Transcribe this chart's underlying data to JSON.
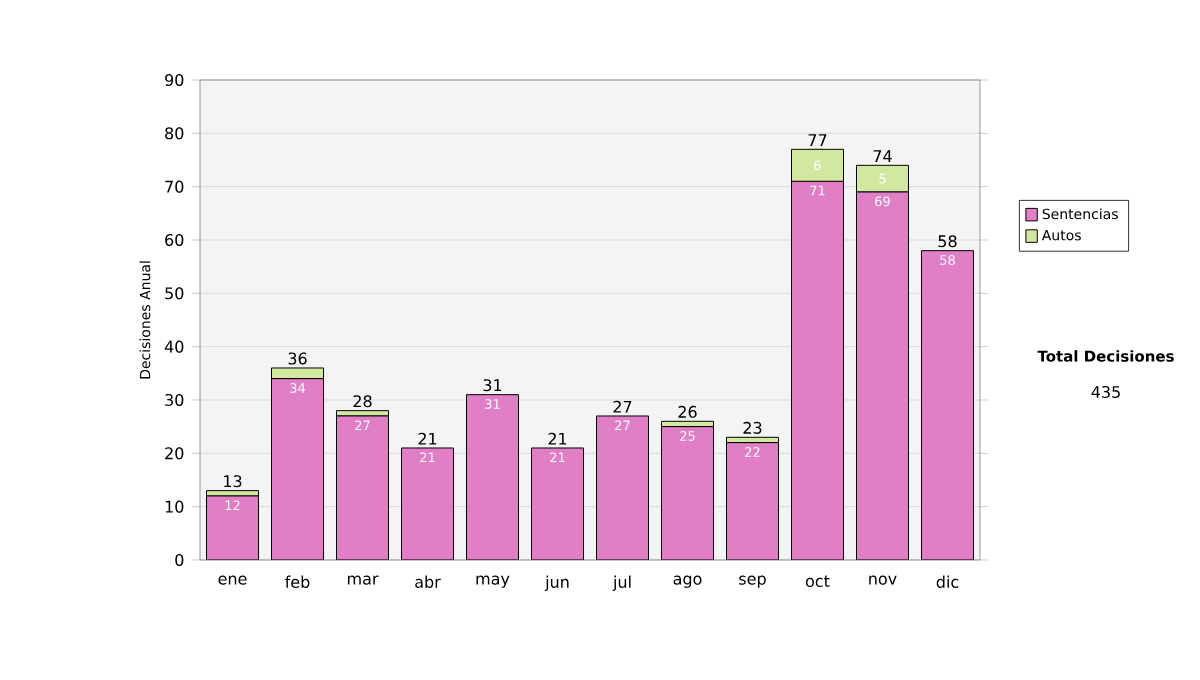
{
  "chart_data": {
    "type": "bar",
    "stacked": true,
    "ylabel": "Decisiones Anual",
    "categories": [
      "ene",
      "feb",
      "mar",
      "abr",
      "may",
      "jun",
      "jul",
      "ago",
      "sep",
      "oct",
      "nov",
      "dic"
    ],
    "series": [
      {
        "name": "Sentencias",
        "color": "#e07ec6",
        "values": [
          12,
          34,
          27,
          21,
          31,
          21,
          27,
          25,
          22,
          71,
          69,
          58
        ],
        "value_labels": [
          "12",
          "34",
          "27",
          "21",
          "31",
          "21",
          "27",
          "25",
          "22",
          "71",
          "69",
          "58"
        ]
      },
      {
        "name": "Autos",
        "color": "#d2e8a0",
        "values": [
          1,
          2,
          1,
          0,
          0,
          0,
          0,
          1,
          1,
          6,
          5,
          0
        ],
        "value_labels": [
          null,
          null,
          null,
          null,
          null,
          null,
          null,
          null,
          null,
          "6",
          "5",
          null
        ]
      }
    ],
    "totals": [
      "13",
      "36",
      "28",
      "21",
      "31",
      "21",
      "27",
      "26",
      "23",
      "77",
      "74",
      "58"
    ],
    "ylim": [
      0,
      90
    ],
    "yticks": [
      0,
      10,
      20,
      30,
      40,
      50,
      60,
      70,
      80,
      90
    ],
    "grid": "y",
    "legend": "right",
    "annotations": [
      "Total Decisiones",
      "435"
    ]
  }
}
